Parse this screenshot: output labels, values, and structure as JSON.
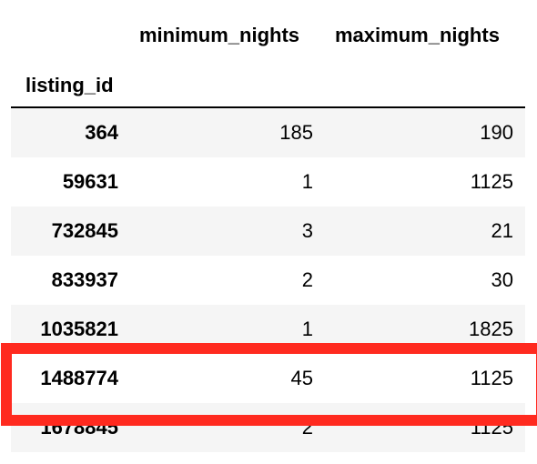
{
  "table": {
    "columns": {
      "minimum_nights": "minimum_nights",
      "maximum_nights": "maximum_nights"
    },
    "index_name": "listing_id",
    "rows": [
      {
        "listing_id": "364",
        "minimum_nights": "185",
        "maximum_nights": "190"
      },
      {
        "listing_id": "59631",
        "minimum_nights": "1",
        "maximum_nights": "1125"
      },
      {
        "listing_id": "732845",
        "minimum_nights": "3",
        "maximum_nights": "21"
      },
      {
        "listing_id": "833937",
        "minimum_nights": "2",
        "maximum_nights": "30"
      },
      {
        "listing_id": "1035821",
        "minimum_nights": "1",
        "maximum_nights": "1825"
      },
      {
        "listing_id": "1488774",
        "minimum_nights": "45",
        "maximum_nights": "1125"
      },
      {
        "listing_id": "1678845",
        "minimum_nights": "2",
        "maximum_nights": "1125"
      }
    ],
    "highlighted_row": "1488774"
  },
  "colors": {
    "highlight_border": "#ff2a1f",
    "row_shade": "#f5f5f5",
    "header_rule": "#000000"
  }
}
